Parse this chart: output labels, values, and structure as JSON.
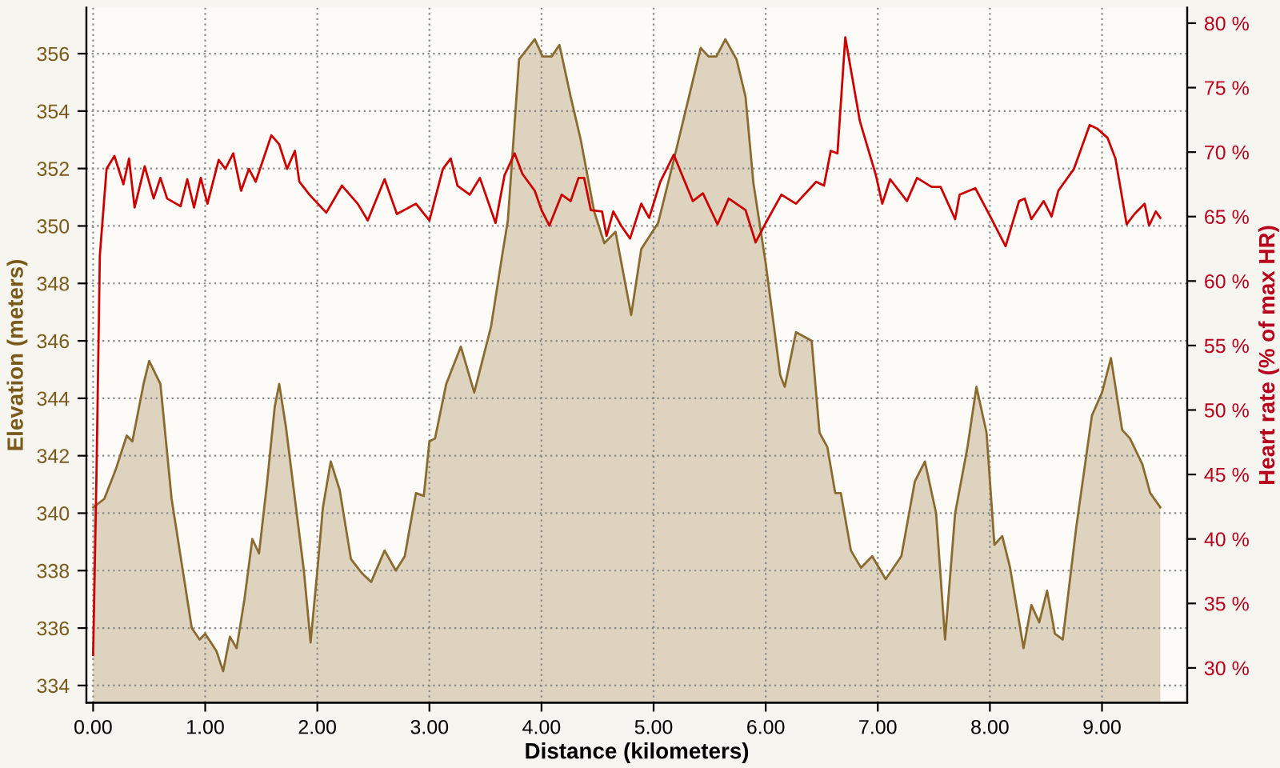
{
  "chart_data": {
    "type": "area",
    "xlabel": "Distance (kilometers)",
    "ylabel": "Elevation (meters)",
    "y2label": "Heart rate (% of max HR)",
    "xlim": [
      -0.06,
      9.76
    ],
    "xticks": [
      {
        "value": 0,
        "label": "0.00"
      },
      {
        "value": 1,
        "label": "1.00"
      },
      {
        "value": 2,
        "label": "2.00"
      },
      {
        "value": 3,
        "label": "3.00"
      },
      {
        "value": 4,
        "label": "4.00"
      },
      {
        "value": 5,
        "label": "5.00"
      },
      {
        "value": 6,
        "label": "6.00"
      },
      {
        "value": 7,
        "label": "7.00"
      },
      {
        "value": 8,
        "label": "8.00"
      },
      {
        "value": 9,
        "label": "9.00"
      }
    ],
    "ylim": [
      333.4,
      357.6
    ],
    "yticks": [
      334,
      336,
      338,
      340,
      342,
      344,
      346,
      348,
      350,
      352,
      354,
      356
    ],
    "y2lim": [
      27.3,
      81.2
    ],
    "y2ticks": [
      {
        "value": 30,
        "label": "30 %"
      },
      {
        "value": 35,
        "label": "35 %"
      },
      {
        "value": 40,
        "label": "40 %"
      },
      {
        "value": 45,
        "label": "45 %"
      },
      {
        "value": 50,
        "label": "50 %"
      },
      {
        "value": 55,
        "label": "55 %"
      },
      {
        "value": 60,
        "label": "60 %"
      },
      {
        "value": 65,
        "label": "65 %"
      },
      {
        "value": 70,
        "label": "70 %"
      },
      {
        "value": 75,
        "label": "75 %"
      },
      {
        "value": 80,
        "label": "80 %"
      }
    ],
    "grid": true,
    "legend": false,
    "series": [
      {
        "color": "#8b6a2f",
        "x": [
          0.0,
          0.1,
          0.2,
          0.3,
          0.35,
          0.45,
          0.5,
          0.6,
          0.7,
          0.8,
          0.88,
          0.95,
          1.0,
          1.1,
          1.16,
          1.22,
          1.28,
          1.35,
          1.42,
          1.48,
          1.55,
          1.62,
          1.66,
          1.72,
          1.8,
          1.88,
          1.94,
          2.0,
          2.05,
          2.12,
          2.2,
          2.3,
          2.4,
          2.48,
          2.6,
          2.7,
          2.78,
          2.88,
          2.95,
          3.0,
          3.05,
          3.15,
          3.28,
          3.4,
          3.55,
          3.65,
          3.7,
          3.8,
          3.94,
          4.01,
          4.09,
          4.16,
          4.26,
          4.35,
          4.47,
          4.56,
          4.66,
          4.8,
          4.89,
          5.04,
          5.18,
          5.42,
          5.49,
          5.56,
          5.64,
          5.74,
          5.82,
          5.89,
          6.0,
          6.13,
          6.17,
          6.27,
          6.41,
          6.48,
          6.55,
          6.62,
          6.67,
          6.76,
          6.85,
          6.95,
          7.07,
          7.21,
          7.33,
          7.42,
          7.52,
          7.6,
          7.69,
          7.8,
          7.88,
          7.97,
          8.04,
          8.11,
          8.18,
          8.3,
          8.37,
          8.44,
          8.51,
          8.58,
          8.65,
          8.77,
          8.91,
          9.0,
          9.08,
          9.18,
          9.25,
          9.36,
          9.43,
          9.52
        ],
        "values": [
          340.2,
          340.5,
          341.5,
          342.7,
          342.5,
          344.5,
          345.3,
          344.5,
          340.5,
          338.0,
          336.0,
          335.6,
          335.8,
          335.2,
          334.5,
          335.7,
          335.3,
          337.0,
          339.1,
          338.6,
          341.0,
          343.7,
          344.5,
          343.0,
          340.5,
          338.0,
          335.5,
          338.0,
          340.2,
          341.8,
          340.8,
          338.4,
          337.9,
          337.6,
          338.7,
          338.0,
          338.5,
          340.7,
          340.6,
          342.5,
          342.6,
          344.5,
          345.8,
          344.2,
          346.5,
          349.0,
          350.2,
          355.8,
          356.5,
          355.9,
          355.9,
          356.3,
          354.5,
          353.0,
          350.5,
          349.4,
          349.8,
          346.9,
          349.2,
          350.1,
          352.3,
          356.2,
          355.9,
          355.9,
          356.5,
          355.8,
          354.5,
          351.5,
          348.7,
          344.8,
          344.4,
          346.3,
          346.0,
          342.8,
          342.3,
          340.7,
          340.7,
          338.7,
          338.1,
          338.5,
          337.7,
          338.5,
          341.1,
          341.8,
          340.0,
          335.6,
          340.0,
          342.3,
          344.4,
          342.8,
          338.9,
          339.2,
          338.1,
          335.3,
          336.8,
          336.2,
          337.3,
          335.8,
          335.6,
          339.5,
          343.4,
          344.2,
          345.4,
          342.9,
          342.6,
          341.7,
          340.7,
          340.2
        ]
      },
      {
        "type": "line",
        "axis": "y2",
        "color": "#cc0000",
        "x": [
          0.0,
          0.03,
          0.06,
          0.12,
          0.19,
          0.27,
          0.32,
          0.37,
          0.46,
          0.54,
          0.6,
          0.66,
          0.78,
          0.84,
          0.9,
          0.96,
          1.02,
          1.12,
          1.18,
          1.25,
          1.32,
          1.39,
          1.45,
          1.59,
          1.66,
          1.73,
          1.8,
          1.84,
          1.93,
          2.08,
          2.22,
          2.36,
          2.45,
          2.6,
          2.71,
          2.88,
          3.0,
          3.12,
          3.19,
          3.25,
          3.36,
          3.45,
          3.59,
          3.67,
          3.76,
          3.83,
          3.94,
          4.0,
          4.07,
          4.18,
          4.26,
          4.33,
          4.38,
          4.44,
          4.54,
          4.58,
          4.64,
          4.71,
          4.79,
          4.89,
          4.96,
          5.06,
          5.18,
          5.25,
          5.35,
          5.44,
          5.57,
          5.67,
          5.82,
          5.91,
          6.0,
          6.14,
          6.27,
          6.45,
          6.52,
          6.58,
          6.64,
          6.71,
          6.84,
          6.98,
          7.04,
          7.11,
          7.26,
          7.35,
          7.48,
          7.56,
          7.69,
          7.73,
          7.87,
          8.01,
          8.14,
          8.26,
          8.31,
          8.37,
          8.48,
          8.55,
          8.61,
          8.75,
          8.89,
          8.96,
          9.05,
          9.12,
          9.22,
          9.29,
          9.38,
          9.42,
          9.48,
          9.52
        ],
        "values": [
          31.0,
          45.0,
          62.0,
          68.7,
          69.7,
          67.5,
          69.5,
          65.7,
          68.9,
          66.4,
          68.0,
          66.4,
          65.8,
          67.9,
          65.7,
          68.0,
          66.0,
          69.4,
          68.7,
          69.9,
          67.0,
          68.7,
          67.7,
          71.3,
          70.6,
          68.7,
          70.1,
          67.7,
          66.7,
          65.3,
          67.4,
          66.0,
          64.7,
          67.9,
          65.2,
          66.0,
          64.7,
          68.7,
          69.5,
          67.4,
          66.7,
          68.0,
          64.5,
          68.2,
          69.9,
          68.3,
          67.0,
          65.5,
          64.3,
          66.7,
          66.2,
          68.0,
          68.0,
          65.5,
          65.4,
          63.5,
          65.4,
          64.3,
          63.3,
          66.0,
          64.9,
          67.7,
          69.8,
          68.3,
          66.2,
          66.8,
          64.4,
          66.4,
          65.5,
          63.0,
          64.5,
          66.7,
          66.0,
          67.7,
          67.4,
          70.1,
          69.9,
          78.9,
          72.4,
          68.3,
          66.0,
          67.9,
          66.2,
          68.0,
          67.3,
          67.3,
          64.8,
          66.7,
          67.2,
          64.9,
          62.7,
          66.2,
          66.4,
          64.8,
          66.2,
          65.0,
          67.0,
          68.7,
          72.1,
          71.8,
          71.1,
          69.5,
          64.4,
          65.2,
          66.0,
          64.3,
          65.4,
          64.9
        ]
      }
    ]
  }
}
